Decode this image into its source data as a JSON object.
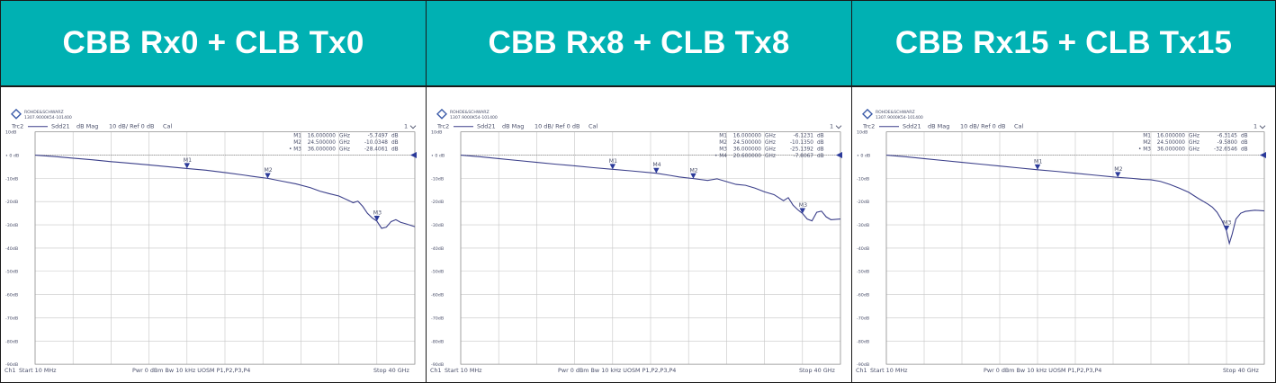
{
  "colors": {
    "header_bg": "#00b1b3",
    "header_text": "#ffffff",
    "trace": "#3b3f8a",
    "marker": "#2b3a9a",
    "grid": "#c6c6c6",
    "text": "#4a4f6a"
  },
  "panels": [
    {
      "title": "CBB Rx0 + CLB Tx0",
      "instrument": [
        "ROHDE&SCHWARZ",
        "1307.9000K54-101400"
      ],
      "trace_header": {
        "trace": "Trc2",
        "param": "Sdd21",
        "format": "dB Mag",
        "scale": "10 dB/ Ref 0 dB",
        "cal": "Cal",
        "channel_tag": "1"
      },
      "marker_table": [
        {
          "name": "M1",
          "freq": "16.000000",
          "unit": "GHz",
          "value": "-5.7497",
          "vunit": "dB"
        },
        {
          "name": "M2",
          "freq": "24.500000",
          "unit": "GHz",
          "value": "-10.0348",
          "vunit": "dB"
        },
        {
          "name": "• M3",
          "freq": "36.000000",
          "unit": "GHz",
          "value": "-28.4061",
          "vunit": "dB"
        }
      ],
      "bottom": {
        "left": "Ch1",
        "start": "Start   10 MHz",
        "middle": "Pwr   0 dBm   Bw   10 kHz   UOSM P1,P2,P3,P4",
        "stop": "Stop   40 GHz"
      },
      "chart_data": {
        "type": "line",
        "xlabel": "",
        "ylabel": "",
        "xlim": [
          0,
          40
        ],
        "ylim": [
          -90,
          10
        ],
        "x_unit": "GHz",
        "y_unit": "dB",
        "ytick_labels": [
          "10dB",
          "0 dB",
          "-10dB",
          "-20dB",
          "-30dB",
          "-40dB",
          "-50dB",
          "-60dB",
          "-70dB",
          "-80dB",
          "-90dB"
        ],
        "ref_label": "• 0 dB",
        "series": [
          {
            "x": [
              0.01,
              2,
              4,
              6,
              8,
              10,
              12,
              14,
              16,
              18,
              20,
              22,
              23,
              24.5,
              26,
              27.5,
              29,
              30,
              31,
              32,
              33,
              33.5,
              34,
              34.5,
              35,
              35.5,
              36,
              36.5,
              37,
              37.5,
              38,
              38.5,
              39,
              40
            ],
            "y": [
              0,
              -0.6,
              -1.3,
              -2.0,
              -2.8,
              -3.5,
              -4.2,
              -5.0,
              -5.75,
              -6.5,
              -7.5,
              -8.6,
              -9.2,
              -10.0,
              -11.2,
              -12.4,
              -14.0,
              -15.5,
              -16.6,
              -17.6,
              -19.5,
              -20.5,
              -19.8,
              -22.0,
              -25.0,
              -27.0,
              -28.4,
              -31.5,
              -31.0,
              -28.6,
              -27.8,
              -28.9,
              -29.5,
              -30.8
            ]
          }
        ],
        "markers": [
          {
            "label": "M1",
            "x": 16.0,
            "y": -5.7497
          },
          {
            "label": "M2",
            "x": 24.5,
            "y": -10.0348
          },
          {
            "label": "M3",
            "x": 36.0,
            "y": -28.4061
          }
        ]
      }
    },
    {
      "title": "CBB Rx8 + CLB Tx8",
      "instrument": [
        "ROHDE&SCHWARZ",
        "1307.9000K54-101400"
      ],
      "trace_header": {
        "trace": "Trc2",
        "param": "Sdd21",
        "format": "dB Mag",
        "scale": "10 dB/ Ref 0 dB",
        "cal": "Cal",
        "channel_tag": "1"
      },
      "marker_table": [
        {
          "name": "M1",
          "freq": "16.000000",
          "unit": "GHz",
          "value": "-6.1231",
          "vunit": "dB"
        },
        {
          "name": "M2",
          "freq": "24.500000",
          "unit": "GHz",
          "value": "-10.1350",
          "vunit": "dB"
        },
        {
          "name": "M3",
          "freq": "36.000000",
          "unit": "GHz",
          "value": "-25.1392",
          "vunit": "dB"
        },
        {
          "name": "• M4",
          "freq": "20.600000",
          "unit": "GHz",
          "value": "-7.8067",
          "vunit": "dB"
        }
      ],
      "bottom": {
        "left": "Ch1",
        "start": "Start   10 MHz",
        "middle": "Pwr   0 dBm   Bw   10 kHz   UOSM P1,P2,P3,P4",
        "stop": "Stop   40 GHz"
      },
      "chart_data": {
        "type": "line",
        "xlabel": "",
        "ylabel": "",
        "xlim": [
          0,
          40
        ],
        "ylim": [
          -90,
          10
        ],
        "x_unit": "GHz",
        "y_unit": "dB",
        "ytick_labels": [
          "10dB",
          "0 dB",
          "-10dB",
          "-20dB",
          "-30dB",
          "-40dB",
          "-50dB",
          "-60dB",
          "-70dB",
          "-80dB",
          "-90dB"
        ],
        "ref_label": "• 0 dB",
        "series": [
          {
            "x": [
              0.01,
              2,
              4,
              6,
              8,
              10,
              12,
              14,
              16,
              18,
              20.6,
              22,
              23,
              24.5,
              26,
              27,
              28,
              29,
              30,
              31,
              32,
              33,
              34,
              34.5,
              35,
              35.5,
              36,
              36.5,
              37,
              37.5,
              38,
              38.5,
              39,
              40
            ],
            "y": [
              0,
              -0.7,
              -1.5,
              -2.3,
              -3.1,
              -3.9,
              -4.6,
              -5.4,
              -6.1,
              -6.8,
              -7.8,
              -8.7,
              -9.4,
              -10.1,
              -10.9,
              -10.2,
              -11.4,
              -12.6,
              -13.0,
              -14.2,
              -15.8,
              -17.0,
              -19.6,
              -18.3,
              -21.5,
              -23.5,
              -25.1,
              -27.5,
              -28.3,
              -24.6,
              -24.1,
              -26.6,
              -27.8,
              -27.5
            ]
          }
        ],
        "markers": [
          {
            "label": "M1",
            "x": 16.0,
            "y": -6.1231
          },
          {
            "label": "M2",
            "x": 24.5,
            "y": -10.135
          },
          {
            "label": "M3",
            "x": 36.0,
            "y": -25.1392
          },
          {
            "label": "M4",
            "x": 20.6,
            "y": -7.8067
          }
        ]
      }
    },
    {
      "title": "CBB Rx15 + CLB Tx15",
      "instrument": [
        "ROHDE&SCHWARZ",
        "1307.9000K54-101400"
      ],
      "trace_header": {
        "trace": "Trc2",
        "param": "Sdd21",
        "format": "dB Mag",
        "scale": "10 dB/ Ref 0 dB",
        "cal": "Cal",
        "channel_tag": "1"
      },
      "marker_table": [
        {
          "name": "M1",
          "freq": "16.000000",
          "unit": "GHz",
          "value": "-6.3145",
          "vunit": "dB"
        },
        {
          "name": "M2",
          "freq": "24.500000",
          "unit": "GHz",
          "value": "-9.5800",
          "vunit": "dB"
        },
        {
          "name": "• M3",
          "freq": "36.000000",
          "unit": "GHz",
          "value": "-32.6546",
          "vunit": "dB"
        }
      ],
      "bottom": {
        "left": "Ch1",
        "start": "Start   10 MHz",
        "middle": "Pwr   0 dBm   Bw   10 kHz   UOSM P1,P2,P3,P4",
        "stop": "Stop   40 GHz"
      },
      "chart_data": {
        "type": "line",
        "xlabel": "",
        "ylabel": "",
        "xlim": [
          0,
          40
        ],
        "ylim": [
          -90,
          10
        ],
        "x_unit": "GHz",
        "y_unit": "dB",
        "ytick_labels": [
          "10dB",
          "0 dB",
          "-10dB",
          "-20dB",
          "-30dB",
          "-40dB",
          "-50dB",
          "-60dB",
          "-70dB",
          "-80dB",
          "-90dB"
        ],
        "ref_label": "• 0 dB",
        "series": [
          {
            "x": [
              0.01,
              2,
              4,
              6,
              8,
              10,
              12,
              14,
              16,
              18,
              20,
              22,
              24.5,
              26,
              27,
              28,
              29,
              30,
              31,
              32,
              33,
              34,
              34.5,
              35,
              35.5,
              36,
              36.3,
              36.6,
              37,
              37.5,
              38,
              39,
              40
            ],
            "y": [
              0,
              -0.7,
              -1.5,
              -2.3,
              -3.1,
              -3.9,
              -4.7,
              -5.5,
              -6.3,
              -7.0,
              -7.8,
              -8.6,
              -9.6,
              -10.0,
              -10.4,
              -10.6,
              -11.3,
              -12.6,
              -14.2,
              -16.0,
              -18.6,
              -21.0,
              -22.4,
              -24.6,
              -28.0,
              -32.6,
              -38.0,
              -34.0,
              -27.5,
              -25.0,
              -24.2,
              -23.7,
              -24.0
            ]
          }
        ],
        "markers": [
          {
            "label": "M1",
            "x": 16.0,
            "y": -6.3145
          },
          {
            "label": "M2",
            "x": 24.5,
            "y": -9.58
          },
          {
            "label": "M3",
            "x": 36.0,
            "y": -32.6546
          }
        ]
      }
    }
  ]
}
